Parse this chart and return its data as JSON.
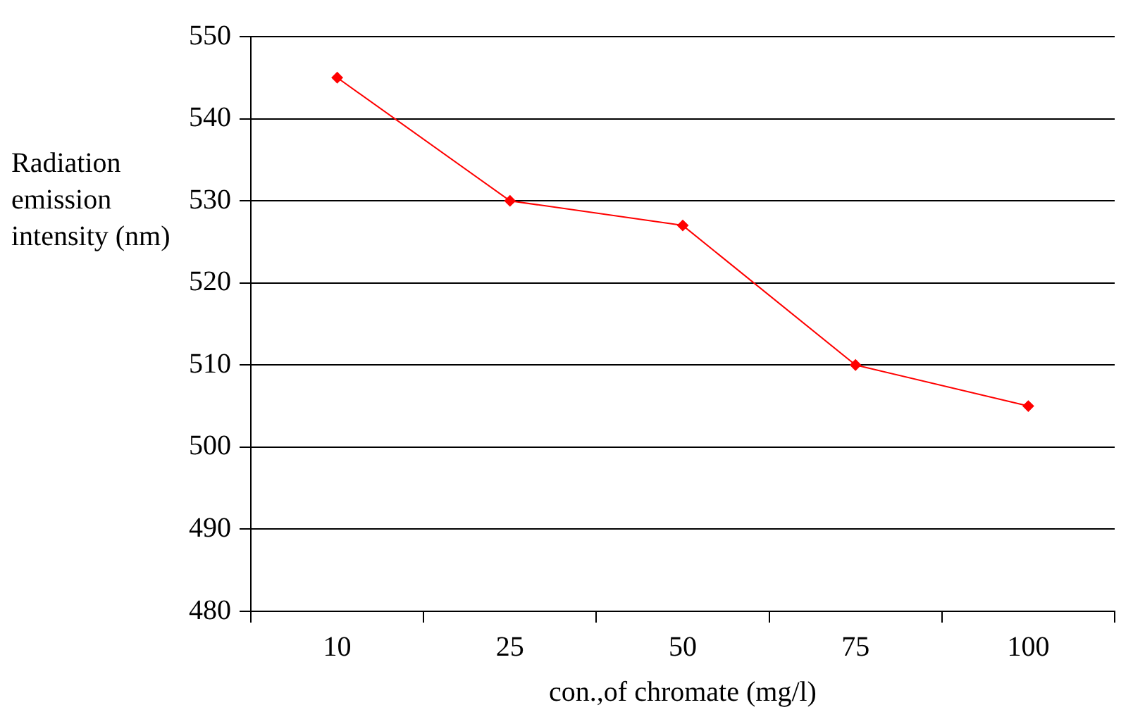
{
  "chart_data": {
    "type": "line",
    "xlabel": "con.,of chromate (mg/l)",
    "ylabel": "Radiation emission intensity (nm)",
    "categories": [
      "10",
      "25",
      "50",
      "75",
      "100"
    ],
    "series": [
      {
        "color": "#ff0000",
        "values": [
          545,
          530,
          527,
          510,
          505
        ]
      }
    ],
    "ylim": [
      480,
      550
    ],
    "yticks": [
      480,
      490,
      500,
      510,
      520,
      530,
      540,
      550
    ],
    "grid": "y",
    "legend": false,
    "marker": "diamond",
    "line_style": "solid"
  }
}
